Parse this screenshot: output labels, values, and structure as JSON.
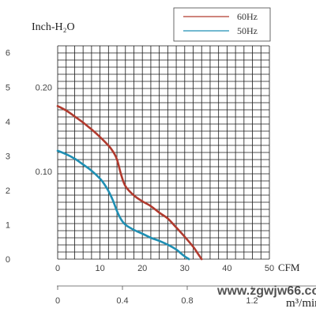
{
  "chart_data": {
    "type": "line",
    "title": "",
    "ylabel": "Inch-H₂O",
    "xlabel": "CFM",
    "xlabel_secondary": "m³/min",
    "watermark": "www.zgwjw66.com",
    "x_ticks": [
      "0",
      "10",
      "20",
      "30",
      "40",
      "50"
    ],
    "x_secondary_ticks": [
      "0",
      "0.4",
      "0.8",
      "1.2"
    ],
    "y_ticks_left": [
      "0",
      "1",
      "2",
      "3",
      "4",
      "5",
      "6"
    ],
    "y_ticks_inner": [
      "0.10",
      "0.20"
    ],
    "xlim": [
      0,
      50
    ],
    "ylim": [
      0,
      6.2
    ],
    "grid": true,
    "legend": "top-right",
    "series": [
      {
        "name": "60Hz",
        "color": "#b03a2e",
        "x": [
          0,
          2,
          4,
          6,
          8,
          10,
          12,
          13,
          14,
          15,
          16,
          18,
          20,
          22,
          24,
          26,
          28,
          30,
          32,
          33,
          34
        ],
        "y": [
          4.45,
          4.32,
          4.15,
          3.97,
          3.77,
          3.55,
          3.3,
          3.14,
          2.9,
          2.45,
          2.12,
          1.85,
          1.68,
          1.54,
          1.35,
          1.18,
          0.92,
          0.65,
          0.36,
          0.18,
          0.0
        ]
      },
      {
        "name": "50Hz",
        "color": "#1f8fb3",
        "x": [
          0,
          2,
          4,
          6,
          8,
          10,
          11,
          12,
          13,
          14,
          15,
          16,
          18,
          20,
          22,
          24,
          26,
          28,
          29,
          30,
          31
        ],
        "y": [
          3.15,
          3.05,
          2.92,
          2.75,
          2.57,
          2.34,
          2.18,
          1.98,
          1.72,
          1.4,
          1.15,
          1.0,
          0.85,
          0.74,
          0.62,
          0.53,
          0.42,
          0.28,
          0.18,
          0.08,
          0.0
        ]
      }
    ]
  }
}
